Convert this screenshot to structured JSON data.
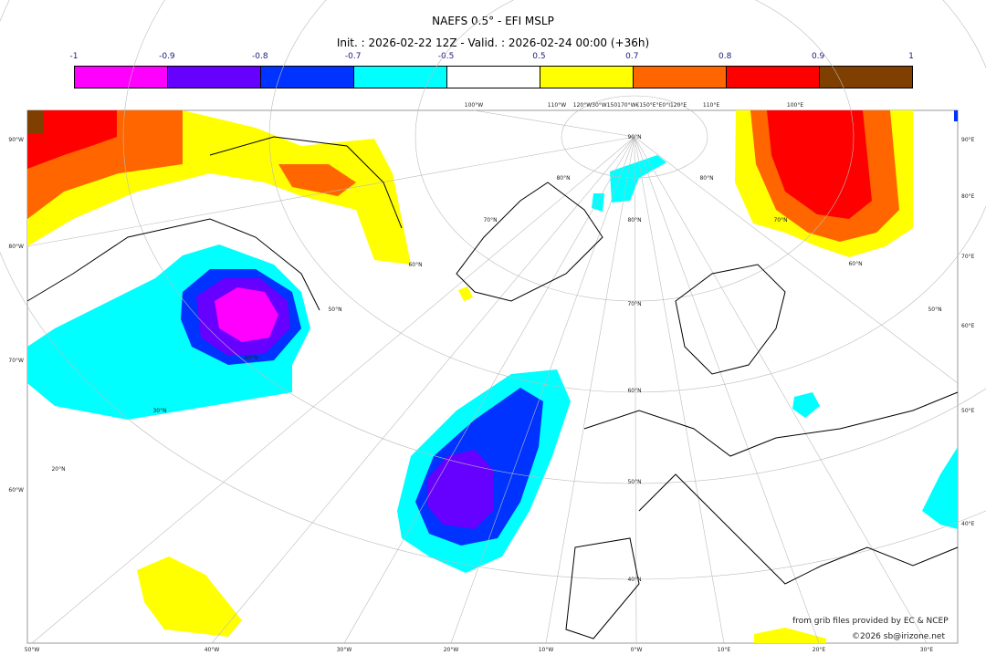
{
  "title": "NAEFS 0.5° - EFI MSLP",
  "subtitle": "Init. : 2026-02-22 12Z - Valid. : 2026-02-24 00:00 (+36h)",
  "colorbar": {
    "ticks": [
      "-1",
      "-0.9",
      "-0.8",
      "-0.7",
      "-0.5",
      "0.5",
      "0.7",
      "0.8",
      "0.9",
      "1"
    ],
    "colors": [
      "#ff00ff",
      "#6600ff",
      "#0033ff",
      "#00ffff",
      "#ffffff",
      "#ffff00",
      "#ff6600",
      "#ff0000",
      "#7f3f00"
    ]
  },
  "axes": {
    "bottom": [
      "50°W",
      "40°W",
      "30°W",
      "20°W",
      "10°W",
      "0°W",
      "10°E",
      "20°E",
      "30°E"
    ],
    "top": [
      "100°W",
      "110°W",
      "120°W30°W150170°W€150°E°E0°I120°E",
      "110°E",
      "100°E"
    ],
    "left": [
      "90°W",
      "80°W",
      "70°W",
      "60°W"
    ],
    "right": [
      "90°E",
      "80°E",
      "70°E",
      "60°E",
      "50°E",
      "40°E"
    ]
  },
  "grid_labels": [
    "90°N",
    "80°N",
    "80°N",
    "80°N",
    "70°N",
    "70°N",
    "70°N",
    "60°N",
    "60°N",
    "60°N",
    "50°N",
    "50°N",
    "50°N",
    "40°N",
    "40°N",
    "30°N",
    "20°N"
  ],
  "credits": {
    "line1": "from grib files provided by EC & NCEP",
    "line2": "©2026 sb@irizone.net"
  }
}
